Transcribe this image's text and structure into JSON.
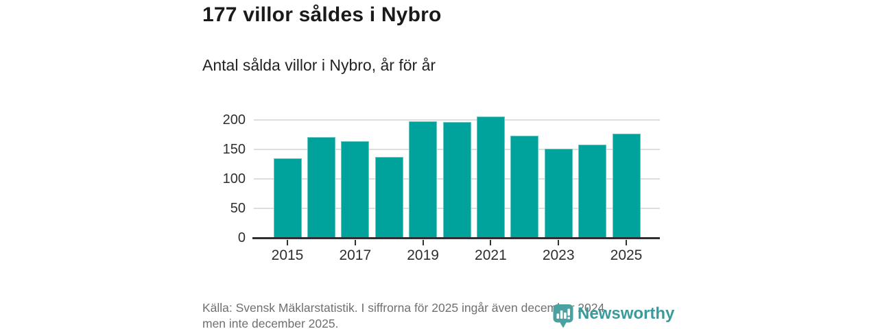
{
  "header": {
    "title": "177 villor såldes i Nybro",
    "subtitle": "Antal sålda villor i Nybro, år för år"
  },
  "chart_data": {
    "type": "bar",
    "categories": [
      "2015",
      "2016",
      "2017",
      "2018",
      "2019",
      "2020",
      "2021",
      "2022",
      "2023",
      "2024",
      "2025"
    ],
    "values": [
      135,
      171,
      164,
      137,
      198,
      196,
      206,
      173,
      151,
      158,
      177
    ],
    "title": "177 villor såldes i Nybro",
    "subtitle": "Antal sålda villor i Nybro, år för år",
    "xlabel": "",
    "ylabel": "Antal sålda villor",
    "ylim": [
      0,
      215
    ],
    "yticks": [
      0,
      50,
      100,
      150,
      200
    ],
    "xtick_labels": [
      "2015",
      "2017",
      "2019",
      "2021",
      "2023",
      "2025"
    ],
    "grid": true,
    "legend": "none",
    "bar_color": "#00a39c"
  },
  "footer": {
    "lines": [
      "Källa: Svensk Mäklarstatistik. I siffrorna för 2025 ingår även december 2024,",
      "men inte december 2025."
    ]
  },
  "logo": {
    "text": "Newsworthy",
    "icon": "newsworthy-chart-bubble-icon",
    "icon_color": "#4aa1a1",
    "text_color": "#399b9b"
  }
}
